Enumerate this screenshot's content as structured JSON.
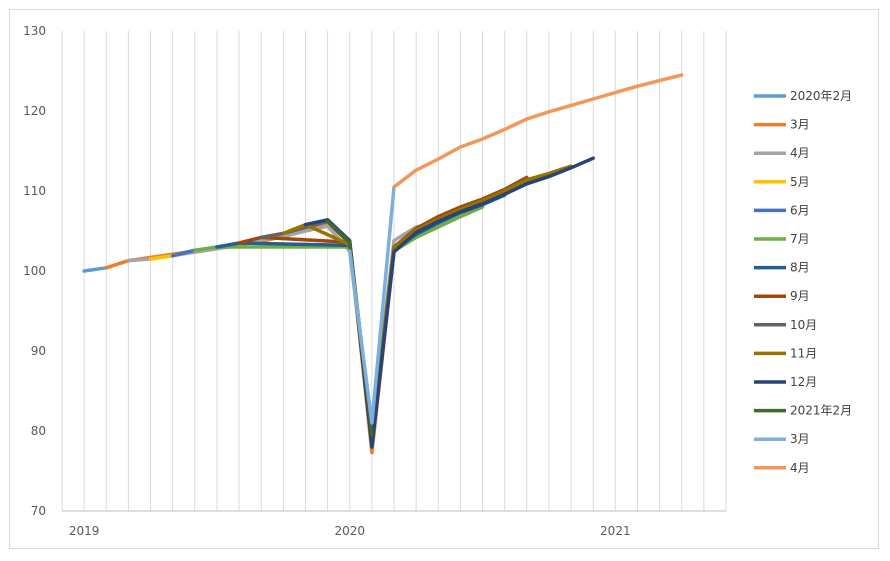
{
  "chart_data": {
    "type": "line",
    "title": "",
    "xlabel": "",
    "ylabel": "",
    "ylim": [
      70,
      130
    ],
    "yticks": [
      70,
      80,
      90,
      100,
      110,
      120,
      130
    ],
    "xtick_labels": [
      {
        "x": "2019-01",
        "label": "2019"
      },
      {
        "x": "2020-01",
        "label": "2020"
      },
      {
        "x": "2021-01",
        "label": "2021"
      }
    ],
    "xlim": [
      "2018-12",
      "2021-06"
    ],
    "grid": "vertical",
    "legend_position": "right",
    "series": [
      {
        "name": "2020年2月",
        "color": "#5B9BD5",
        "points": [
          [
            "2019-01",
            100.0
          ],
          [
            "2019-02",
            100.4
          ]
        ]
      },
      {
        "name": "3月",
        "color": "#ED7D31",
        "points": [
          [
            "2019-02",
            100.4
          ],
          [
            "2019-03",
            101.3
          ],
          [
            "2019-09",
            103.7
          ],
          [
            "2019-10",
            104.3
          ],
          [
            "2019-11",
            105.2
          ],
          [
            "2019-12",
            106.0
          ],
          [
            "2020-01",
            103.5
          ],
          [
            "2020-02",
            77.3
          ],
          [
            "2020-03",
            102.5
          ],
          [
            "2020-04",
            105.0
          ],
          [
            "2020-05",
            106.5
          ],
          [
            "2020-06",
            107.5
          ],
          [
            "2020-07",
            108.5
          ],
          [
            "2020-08",
            109.7
          ],
          [
            "2020-09",
            111.0
          ]
        ]
      },
      {
        "name": "4月",
        "color": "#A5A5A5",
        "points": [
          [
            "2019-03",
            101.3
          ],
          [
            "2019-04",
            101.5
          ],
          [
            "2019-08",
            103.2
          ],
          [
            "2019-09",
            103.9
          ],
          [
            "2019-10",
            104.3
          ],
          [
            "2019-11",
            105.0
          ],
          [
            "2019-12",
            105.6
          ],
          [
            "2020-01",
            102.5
          ],
          [
            "2020-02",
            80.0
          ],
          [
            "2020-03",
            103.8
          ],
          [
            "2020-04",
            105.5
          ],
          [
            "2020-05",
            106.1
          ]
        ]
      },
      {
        "name": "5月",
        "color": "#FFC000",
        "points": [
          [
            "2019-04",
            101.5
          ],
          [
            "2019-05",
            101.9
          ]
        ]
      },
      {
        "name": "6月",
        "color": "#4472C4",
        "points": [
          [
            "2019-05",
            101.9
          ],
          [
            "2019-06",
            102.6
          ]
        ]
      },
      {
        "name": "7月",
        "color": "#70AD47",
        "points": [
          [
            "2019-06",
            102.6
          ],
          [
            "2019-07",
            103.0
          ],
          [
            "2020-01",
            103.0
          ],
          [
            "2020-02",
            79.0
          ],
          [
            "2020-03",
            102.5
          ],
          [
            "2020-04",
            104.2
          ],
          [
            "2020-05",
            105.5
          ],
          [
            "2020-06",
            106.8
          ],
          [
            "2020-07",
            108.0
          ]
        ]
      },
      {
        "name": "8月",
        "color": "#255E91",
        "points": [
          [
            "2019-07",
            103.0
          ],
          [
            "2019-08",
            103.5
          ],
          [
            "2020-01",
            103.2
          ],
          [
            "2020-02",
            79.5
          ],
          [
            "2020-03",
            102.6
          ],
          [
            "2020-04",
            104.6
          ],
          [
            "2020-05",
            106.0
          ],
          [
            "2020-06",
            107.3
          ],
          [
            "2020-07",
            108.3
          ],
          [
            "2020-08",
            109.5
          ]
        ]
      },
      {
        "name": "9月",
        "color": "#9E480E",
        "points": [
          [
            "2019-08",
            103.5
          ],
          [
            "2019-09",
            104.2
          ],
          [
            "2020-01",
            103.6
          ],
          [
            "2020-02",
            78.5
          ],
          [
            "2020-03",
            103.0
          ],
          [
            "2020-04",
            105.3
          ],
          [
            "2020-05",
            106.8
          ],
          [
            "2020-06",
            108.0
          ],
          [
            "2020-07",
            109.0
          ],
          [
            "2020-08",
            110.2
          ],
          [
            "2020-09",
            111.7
          ]
        ]
      },
      {
        "name": "10月",
        "color": "#636363",
        "points": [
          [
            "2019-09",
            104.2
          ],
          [
            "2019-10",
            104.7
          ],
          [
            "2019-12",
            106.2
          ],
          [
            "2020-01",
            103.4
          ],
          [
            "2020-02",
            79.2
          ],
          [
            "2020-03",
            102.8
          ],
          [
            "2020-04",
            105.0
          ],
          [
            "2020-05",
            106.4
          ],
          [
            "2020-06",
            107.6
          ],
          [
            "2020-07",
            108.7
          ],
          [
            "2020-08",
            109.9
          ],
          [
            "2020-09",
            111.3
          ],
          [
            "2020-10",
            112.1
          ]
        ]
      },
      {
        "name": "11月",
        "color": "#997300",
        "points": [
          [
            "2019-10",
            104.7
          ],
          [
            "2019-11",
            105.8
          ],
          [
            "2020-01",
            103.3
          ],
          [
            "2020-02",
            79.8
          ],
          [
            "2020-03",
            102.9
          ],
          [
            "2020-04",
            105.1
          ],
          [
            "2020-05",
            106.5
          ],
          [
            "2020-06",
            107.7
          ],
          [
            "2020-07",
            108.8
          ],
          [
            "2020-08",
            110.0
          ],
          [
            "2020-09",
            111.4
          ],
          [
            "2020-10",
            112.2
          ],
          [
            "2020-11",
            113.1
          ]
        ]
      },
      {
        "name": "12月",
        "color": "#264478",
        "points": [
          [
            "2019-11",
            105.8
          ],
          [
            "2019-12",
            106.4
          ],
          [
            "2020-01",
            103.8
          ],
          [
            "2020-02",
            78.0
          ],
          [
            "2020-03",
            102.4
          ],
          [
            "2020-04",
            104.8
          ],
          [
            "2020-05",
            106.2
          ],
          [
            "2020-06",
            107.4
          ],
          [
            "2020-07",
            108.4
          ],
          [
            "2020-08",
            109.6
          ],
          [
            "2020-09",
            110.9
          ],
          [
            "2020-10",
            111.8
          ],
          [
            "2020-11",
            112.9
          ],
          [
            "2020-12",
            114.1
          ]
        ]
      },
      {
        "name": "2021年2月",
        "color": "#43682B",
        "points": [
          [
            "2019-12",
            106.2
          ],
          [
            "2020-01",
            103.6
          ],
          [
            "2020-02",
            79.5
          ]
        ]
      },
      {
        "name": "3月",
        "color": "#7CAFDD",
        "points": [
          [
            "2020-01",
            102.5
          ],
          [
            "2020-02",
            81.0
          ],
          [
            "2020-03",
            110.5
          ]
        ]
      },
      {
        "name": "4月",
        "color": "#F1975A",
        "points": [
          [
            "2020-03",
            110.5
          ],
          [
            "2020-04",
            112.6
          ],
          [
            "2020-05",
            114.0
          ],
          [
            "2020-06",
            115.5
          ],
          [
            "2020-07",
            116.5
          ],
          [
            "2020-08",
            117.7
          ],
          [
            "2020-09",
            119.0
          ],
          [
            "2020-10",
            119.9
          ],
          [
            "2020-11",
            120.7
          ],
          [
            "2020-12",
            121.5
          ],
          [
            "2021-01",
            122.3
          ],
          [
            "2021-02",
            123.1
          ],
          [
            "2021-03",
            123.8
          ],
          [
            "2021-04",
            124.5
          ]
        ]
      }
    ]
  }
}
